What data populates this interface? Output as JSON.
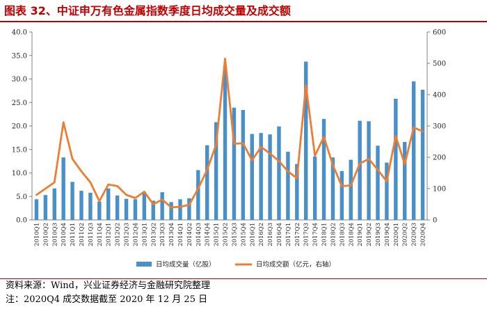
{
  "title": "图表 32、中证申万有色金属指数季度日均成交量及成交额",
  "source": "资料来源：Wind，兴业证券经济与金融研究院整理",
  "footnote": "注：2020Q4 成交数据截至 2020 年 12 月 25 日",
  "colors": {
    "title": "#c00000",
    "bar": "#4a90c8",
    "line": "#ed7d31"
  },
  "chart_data": {
    "type": "bar",
    "categories": [
      "2010Q1",
      "2010Q2",
      "2010Q3",
      "2010Q4",
      "2011Q1",
      "2011Q2",
      "2011Q3",
      "2011Q4",
      "2012Q1",
      "2012Q2",
      "2012Q3",
      "2012Q4",
      "2013Q1",
      "2013Q2",
      "2013Q3",
      "2013Q4",
      "2014Q1",
      "2014Q2",
      "2014Q3",
      "2014Q4",
      "2015Q1",
      "2015Q2",
      "2015Q3",
      "2015Q4",
      "2016Q1",
      "2016Q2",
      "2016Q3",
      "2016Q4",
      "2017Q1",
      "2017Q2",
      "2017Q3",
      "2017Q4",
      "2018Q1",
      "2018Q2",
      "2018Q3",
      "2018Q4",
      "2019Q1",
      "2019Q2",
      "2019Q3",
      "2019Q4",
      "2020Q1",
      "2020Q2",
      "2020Q3",
      "2020Q4"
    ],
    "series": [
      {
        "name": "日均成交量（亿股）",
        "axis": "left",
        "type": "bar",
        "values": [
          4.4,
          5.3,
          6.7,
          13.3,
          8.1,
          6.2,
          5.8,
          3.9,
          6.7,
          5.2,
          4.5,
          4.4,
          5.7,
          4.1,
          5.9,
          3.8,
          4.4,
          4.6,
          10.6,
          15.9,
          20.8,
          32.6,
          23.9,
          23.4,
          18.3,
          18.5,
          18.2,
          19.9,
          14.5,
          11.9,
          33.7,
          13.5,
          21.5,
          13.3,
          10.4,
          12.8,
          21.1,
          21.0,
          15.8,
          12.2,
          25.8,
          16.6,
          29.5,
          27.7
        ]
      },
      {
        "name": "日均成交额（亿元，右轴）",
        "axis": "right",
        "type": "line",
        "values": [
          80,
          100,
          120,
          312,
          195,
          155,
          120,
          60,
          113,
          108,
          80,
          70,
          90,
          50,
          65,
          40,
          42,
          48,
          100,
          160,
          240,
          515,
          243,
          245,
          190,
          233,
          212,
          188,
          155,
          133,
          430,
          205,
          265,
          175,
          108,
          110,
          180,
          195,
          160,
          123,
          268,
          178,
          295,
          283
        ]
      }
    ],
    "y_left": {
      "ylim": [
        0,
        40
      ],
      "ticks": [
        "0.0",
        "5.0",
        "10.0",
        "15.0",
        "20.0",
        "25.0",
        "30.0",
        "35.0",
        "40.0"
      ]
    },
    "y_right": {
      "ylim": [
        0,
        600
      ],
      "ticks": [
        "0",
        "100",
        "200",
        "300",
        "400",
        "500",
        "600"
      ]
    },
    "legend": {
      "position": "bottom"
    },
    "grid": false
  }
}
